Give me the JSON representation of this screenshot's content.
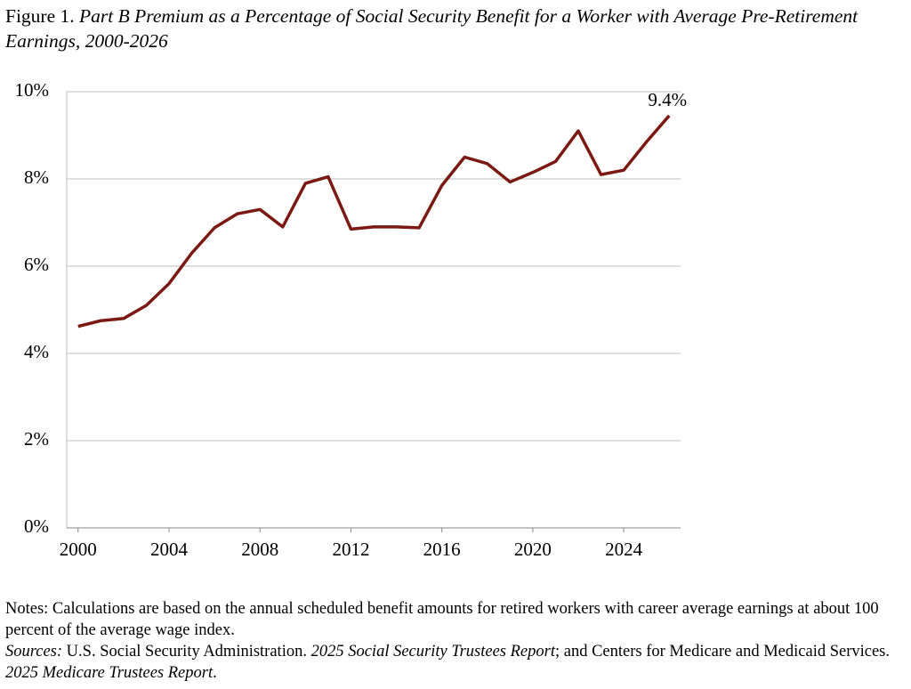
{
  "chart_data": {
    "type": "line",
    "title_prefix": "Figure 1.",
    "title": "Part B Premium as a Percentage of Social Security Benefit for a Worker with Average Pre-Retirement Earnings, 2000-2026",
    "x": [
      2000,
      2001,
      2002,
      2003,
      2004,
      2005,
      2006,
      2007,
      2008,
      2009,
      2010,
      2011,
      2012,
      2013,
      2014,
      2015,
      2016,
      2017,
      2018,
      2019,
      2020,
      2021,
      2022,
      2023,
      2024,
      2025,
      2026
    ],
    "series": [
      {
        "color": "#7b1a12",
        "values": [
          4.62,
          4.75,
          4.8,
          5.1,
          5.6,
          6.3,
          6.88,
          7.2,
          7.3,
          6.9,
          7.9,
          8.05,
          6.85,
          6.9,
          6.9,
          6.88,
          7.85,
          8.5,
          8.35,
          7.93,
          8.15,
          8.4,
          9.1,
          8.1,
          8.2,
          8.85,
          9.45
        ],
        "value_labels": [
          null,
          null,
          null,
          null,
          null,
          null,
          null,
          null,
          null,
          null,
          null,
          null,
          null,
          null,
          null,
          null,
          null,
          null,
          null,
          null,
          null,
          null,
          null,
          null,
          null,
          null,
          "9.4%"
        ]
      }
    ],
    "xlim": [
      1999.5,
      2026.5
    ],
    "xticks": [
      2000,
      2004,
      2008,
      2012,
      2016,
      2020,
      2024
    ],
    "ylim": [
      0,
      10
    ],
    "yticks": [
      {
        "value": 0,
        "label": "0%"
      },
      {
        "value": 2,
        "label": "2%"
      },
      {
        "value": 4,
        "label": "4%"
      },
      {
        "value": 6,
        "label": "6%"
      },
      {
        "value": 8,
        "label": "8%"
      },
      {
        "value": 10,
        "label": "10%"
      }
    ],
    "grid": true
  },
  "notes": "Notes: Calculations are based on the annual scheduled benefit amounts for retired workers with career average earnings at about 100 percent of the average wage index.",
  "sources": [
    "Sources:",
    "U.S. Social Security Administration.",
    "2025 Social Security Trustees Report",
    "; and Centers for Medicare and Medicaid Services.",
    "2025 Medicare Trustees Report",
    "."
  ]
}
